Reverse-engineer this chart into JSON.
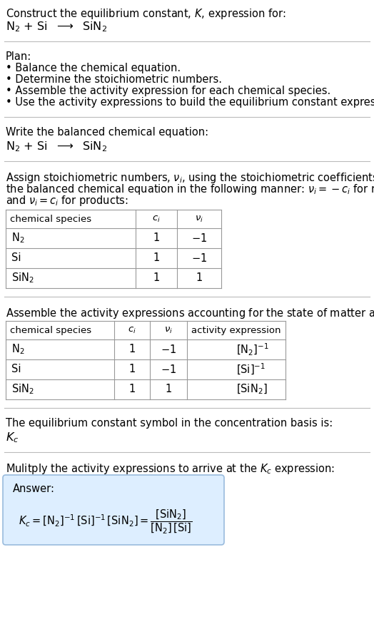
{
  "bg_color": "#ffffff",
  "text_color": "#000000",
  "table_border_color": "#999999",
  "separator_color": "#bbbbbb",
  "answer_box_bg": "#ddeeff",
  "answer_box_border": "#99bbdd",
  "font_size": 10.5,
  "sections": {
    "s1_line1": "Construct the equilibrium constant, $K$, expression for:",
    "s1_line2": "$\\mathrm{N_2}$ + Si  $\\longrightarrow$  $\\mathrm{SiN_2}$",
    "s2_header": "Plan:",
    "s2_bullets": [
      "• Balance the chemical equation.",
      "• Determine the stoichiometric numbers.",
      "• Assemble the activity expression for each chemical species.",
      "• Use the activity expressions to build the equilibrium constant expression."
    ],
    "s3_header": "Write the balanced chemical equation:",
    "s3_eq": "$\\mathrm{N_2}$ + Si  $\\longrightarrow$  $\\mathrm{SiN_2}$",
    "s4_text_lines": [
      "Assign stoichiometric numbers, $\\nu_i$, using the stoichiometric coefficients, $c_i$, from",
      "the balanced chemical equation in the following manner: $\\nu_i = -c_i$ for reactants",
      "and $\\nu_i = c_i$ for products:"
    ],
    "table1_col_headers": [
      "chemical species",
      "$c_i$",
      "$\\nu_i$"
    ],
    "table1_rows": [
      [
        "$\\mathrm{N_2}$",
        "1",
        "$-1$"
      ],
      [
        "Si",
        "1",
        "$-1$"
      ],
      [
        "$\\mathrm{SiN_2}$",
        "1",
        "1"
      ]
    ],
    "s5_header": "Assemble the activity expressions accounting for the state of matter and $\\nu_i$:",
    "table2_col_headers": [
      "chemical species",
      "$c_i$",
      "$\\nu_i$",
      "activity expression"
    ],
    "table2_rows": [
      [
        "$\\mathrm{N_2}$",
        "1",
        "$-1$",
        "$[\\mathrm{N_2}]^{-1}$"
      ],
      [
        "Si",
        "1",
        "$-1$",
        "$[\\mathrm{Si}]^{-1}$"
      ],
      [
        "$\\mathrm{SiN_2}$",
        "1",
        "1",
        "$[\\mathrm{SiN_2}]$"
      ]
    ],
    "s6_header": "The equilibrium constant symbol in the concentration basis is:",
    "s6_symbol": "$K_c$",
    "s7_header": "Mulitply the activity expressions to arrive at the $K_c$ expression:",
    "s7_answer_label": "Answer:",
    "s7_equation": "$K_c = [\\mathrm{N_2}]^{-1}\\,[\\mathrm{Si}]^{-1}\\,[\\mathrm{SiN_2}] = \\dfrac{[\\mathrm{SiN_2}]}{[\\mathrm{N_2}]\\,[\\mathrm{Si}]}$"
  }
}
